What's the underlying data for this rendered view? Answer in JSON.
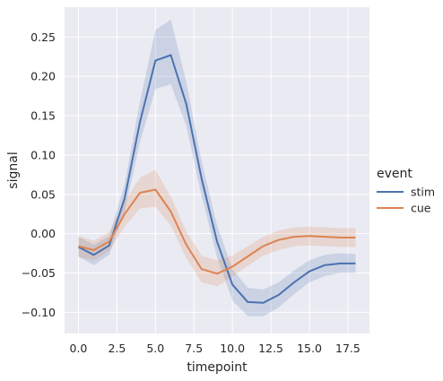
{
  "chart_data": {
    "type": "line",
    "xlabel": "timepoint",
    "ylabel": "signal",
    "xlim": [
      -0.9,
      18.9
    ],
    "ylim": [
      -0.127,
      0.288
    ],
    "xticks": [
      0.0,
      2.5,
      5.0,
      7.5,
      10.0,
      12.5,
      15.0,
      17.5
    ],
    "xtick_labels": [
      "0.0",
      "2.5",
      "5.0",
      "7.5",
      "10.0",
      "12.5",
      "15.0",
      "17.5"
    ],
    "yticks": [
      -0.1,
      -0.05,
      0.0,
      0.05,
      0.1,
      0.15,
      0.2,
      0.25
    ],
    "ytick_labels": [
      "−0.10",
      "−0.05",
      "0.00",
      "0.05",
      "0.10",
      "0.15",
      "0.20",
      "0.25"
    ],
    "grid": true,
    "background": "#eaeaf2",
    "legend_title": "event",
    "legend_position": "outside-right",
    "x": [
      0,
      1,
      2,
      3,
      4,
      5,
      6,
      7,
      8,
      9,
      10,
      11,
      12,
      13,
      14,
      15,
      16,
      17,
      18
    ],
    "series": [
      {
        "name": "stim",
        "color": "#4c72b0",
        "values": [
          -0.017,
          -0.027,
          -0.015,
          0.045,
          0.142,
          0.22,
          0.227,
          0.165,
          0.07,
          -0.01,
          -0.065,
          -0.087,
          -0.088,
          -0.078,
          -0.062,
          -0.048,
          -0.04,
          -0.038,
          -0.038
        ],
        "ci_low": [
          -0.029,
          -0.04,
          -0.027,
          0.028,
          0.116,
          0.184,
          0.19,
          0.137,
          0.048,
          -0.03,
          -0.085,
          -0.105,
          -0.105,
          -0.094,
          -0.077,
          -0.062,
          -0.054,
          -0.05,
          -0.05
        ],
        "ci_high": [
          -0.004,
          -0.014,
          -0.003,
          0.063,
          0.168,
          0.259,
          0.272,
          0.193,
          0.092,
          0.011,
          -0.045,
          -0.069,
          -0.071,
          -0.062,
          -0.047,
          -0.034,
          -0.027,
          -0.025,
          -0.026
        ]
      },
      {
        "name": "cue",
        "color": "#dd8452",
        "values": [
          -0.016,
          -0.021,
          -0.01,
          0.025,
          0.052,
          0.056,
          0.028,
          -0.014,
          -0.045,
          -0.051,
          -0.042,
          -0.029,
          -0.016,
          -0.008,
          -0.004,
          -0.003,
          -0.004,
          -0.005,
          -0.005
        ],
        "ci_low": [
          -0.03,
          -0.034,
          -0.022,
          0.009,
          0.032,
          0.034,
          0.01,
          -0.031,
          -0.062,
          -0.067,
          -0.055,
          -0.041,
          -0.028,
          -0.021,
          -0.016,
          -0.015,
          -0.016,
          -0.017,
          -0.017
        ],
        "ci_high": [
          -0.003,
          -0.009,
          0.002,
          0.041,
          0.071,
          0.081,
          0.047,
          0.003,
          -0.028,
          -0.034,
          -0.028,
          -0.016,
          -0.004,
          0.004,
          0.008,
          0.009,
          0.008,
          0.007,
          0.007
        ]
      }
    ]
  }
}
